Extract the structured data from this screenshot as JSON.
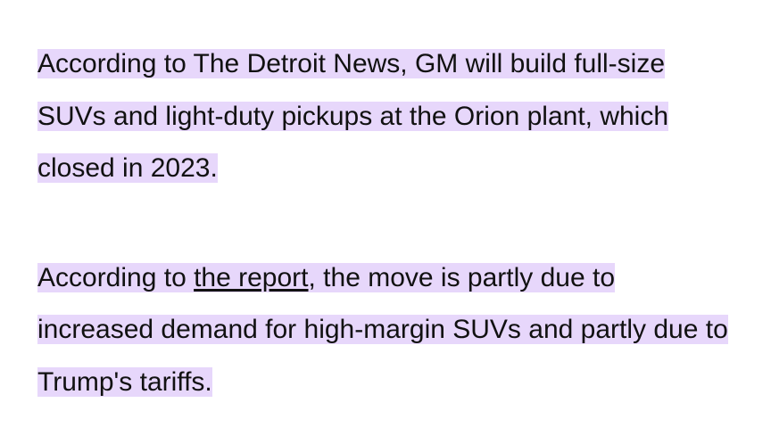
{
  "paragraphs": [
    {
      "runs": [
        "According to The Detroit News, GM will build full-size SUVs and light-duty pickups at the Orion plant, which closed in 2023."
      ]
    },
    {
      "runs": [
        "According to ",
        "the report",
        ", the move is partly due to increased demand for high-margin SUVs and partly due to Trump's tariffs."
      ]
    }
  ]
}
